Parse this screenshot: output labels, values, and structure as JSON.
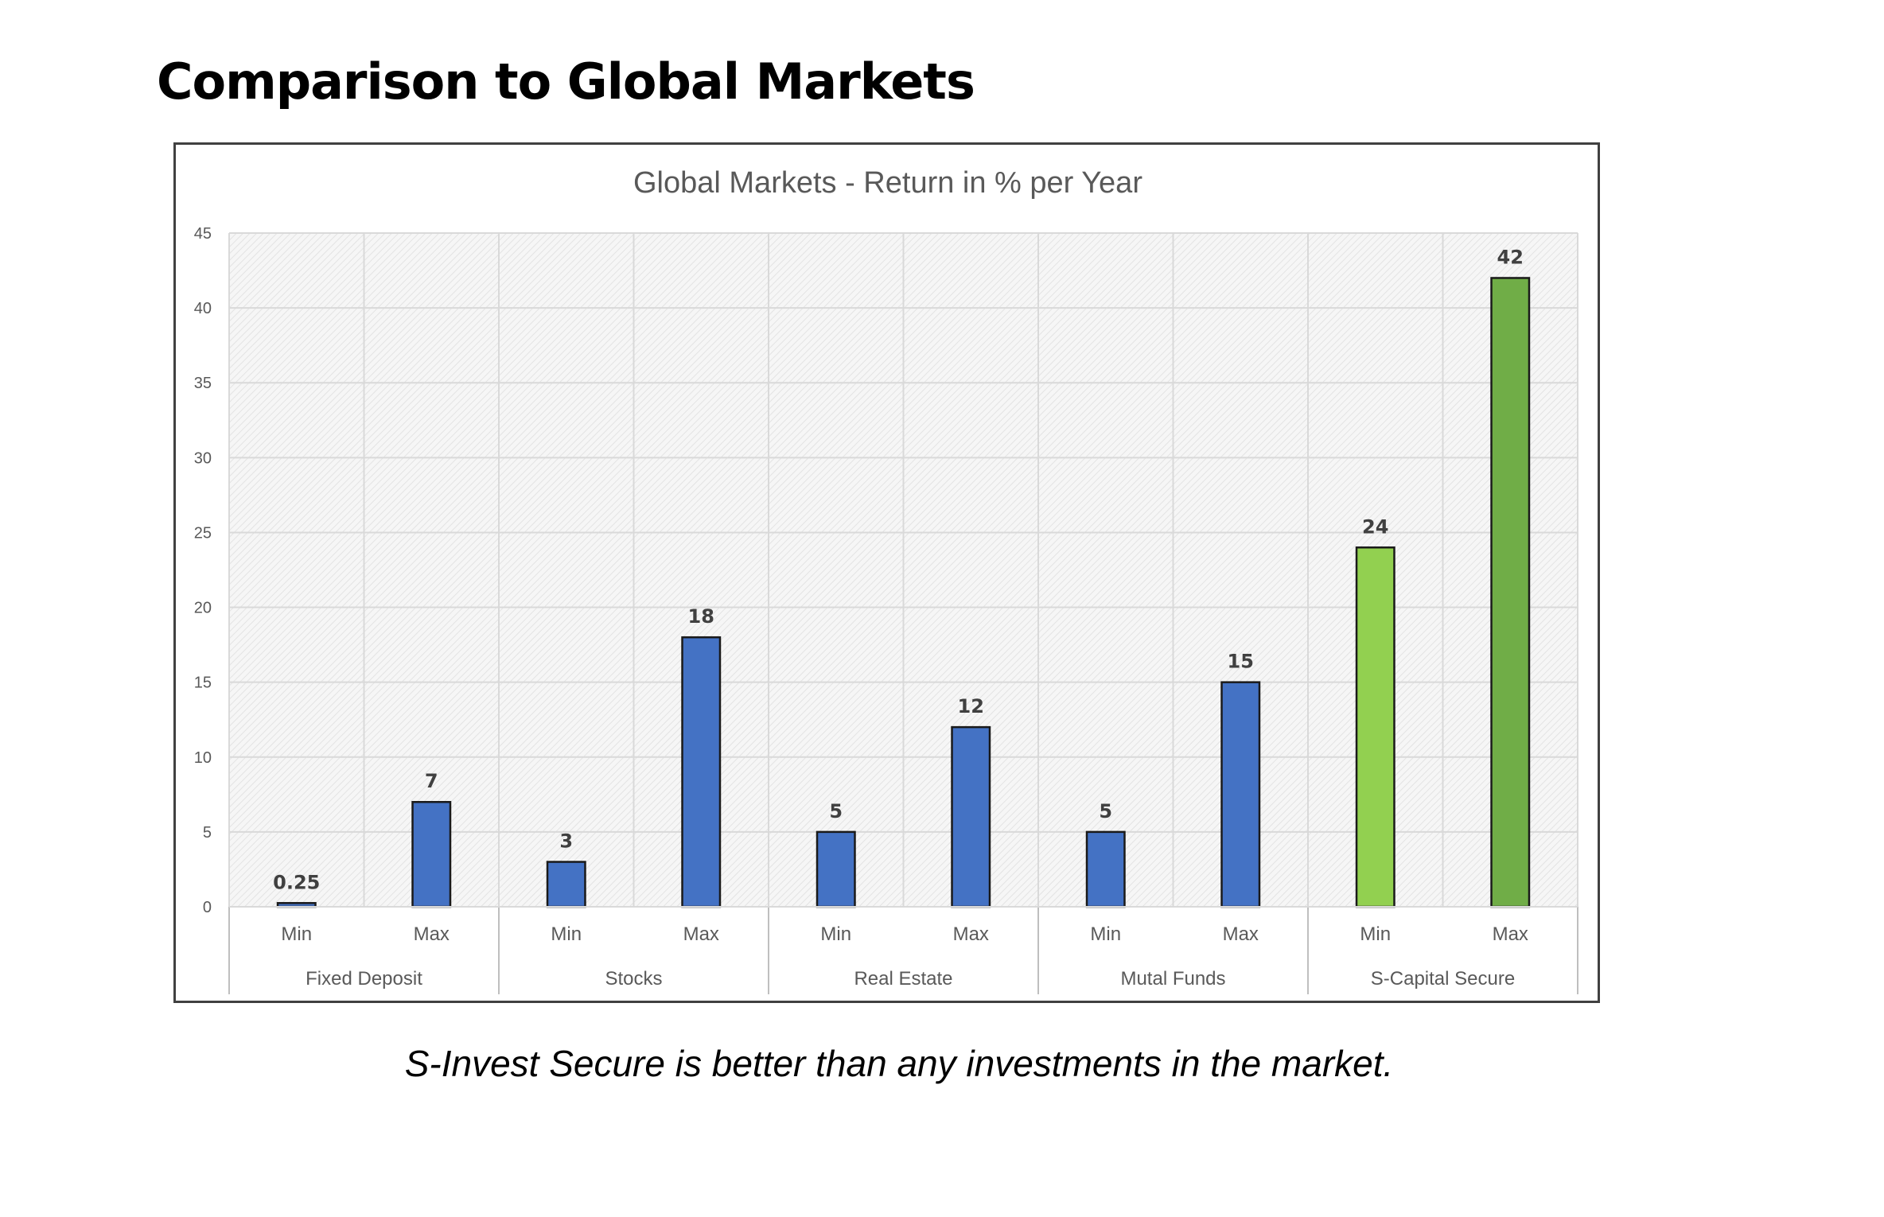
{
  "page": {
    "heading": "Comparison to Global Markets",
    "caption": "S-Invest Secure is better than any investments in the market."
  },
  "chart_data": {
    "type": "bar",
    "title": "Global Markets - Return in % per Year",
    "xlabel": "",
    "ylabel": "",
    "ylim": [
      0,
      45
    ],
    "yticks": [
      0,
      5,
      10,
      15,
      20,
      25,
      30,
      35,
      40,
      45
    ],
    "grid": true,
    "legend": "none",
    "groups": [
      {
        "name": "Fixed Deposit",
        "bars": [
          {
            "label": "Min",
            "value": 0.25,
            "value_label": "0.25",
            "color": "#4472C4"
          },
          {
            "label": "Max",
            "value": 7,
            "value_label": "7",
            "color": "#4472C4"
          }
        ]
      },
      {
        "name": "Stocks",
        "bars": [
          {
            "label": "Min",
            "value": 3,
            "value_label": "3",
            "color": "#4472C4"
          },
          {
            "label": "Max",
            "value": 18,
            "value_label": "18",
            "color": "#4472C4"
          }
        ]
      },
      {
        "name": "Real Estate",
        "bars": [
          {
            "label": "Min",
            "value": 5,
            "value_label": "5",
            "color": "#4472C4"
          },
          {
            "label": "Max",
            "value": 12,
            "value_label": "12",
            "color": "#4472C4"
          }
        ]
      },
      {
        "name": "Mutal Funds",
        "bars": [
          {
            "label": "Min",
            "value": 5,
            "value_label": "5",
            "color": "#4472C4"
          },
          {
            "label": "Max",
            "value": 15,
            "value_label": "15",
            "color": "#4472C4"
          }
        ]
      },
      {
        "name": "S-Capital Secure",
        "bars": [
          {
            "label": "Min",
            "value": 24,
            "value_label": "24",
            "color": "#92D050"
          },
          {
            "label": "Max",
            "value": 42,
            "value_label": "42",
            "color": "#70AD47"
          }
        ]
      }
    ]
  }
}
